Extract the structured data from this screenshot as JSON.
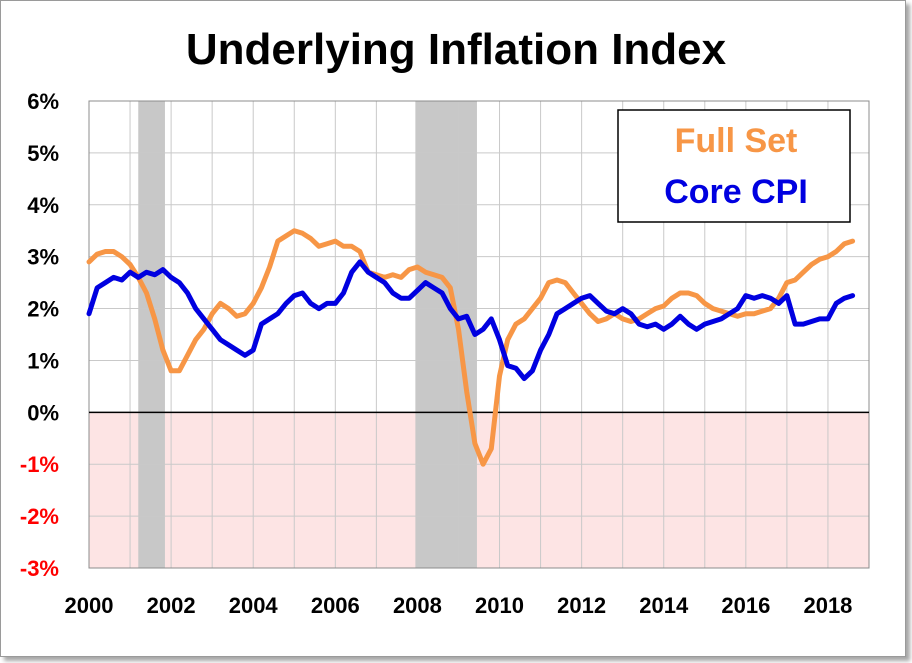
{
  "chart_data": {
    "type": "line",
    "title": "Underlying Inflation Index",
    "xlabel": "",
    "ylabel": "",
    "xlim": [
      2000,
      2019.0
    ],
    "ylim": [
      -3,
      6
    ],
    "y_ticks": [
      "-3%",
      "-2%",
      "-1%",
      "0%",
      "1%",
      "2%",
      "3%",
      "4%",
      "5%",
      "6%"
    ],
    "y_tick_values": [
      -3,
      -2,
      -1,
      0,
      1,
      2,
      3,
      4,
      5,
      6
    ],
    "x_ticks": [
      "2000",
      "2002",
      "2004",
      "2006",
      "2008",
      "2010",
      "2012",
      "2014",
      "2016",
      "2018"
    ],
    "x_tick_values": [
      2000,
      2002,
      2004,
      2006,
      2008,
      2010,
      2012,
      2014,
      2016,
      2018
    ],
    "recessions": [
      [
        2001.2,
        2001.85
      ],
      [
        2007.95,
        2009.45
      ]
    ],
    "legend": {
      "position": "top-right",
      "entries": [
        "Full Set",
        "Core CPI"
      ]
    },
    "colors": {
      "full_set": "#f79646",
      "core_cpi": "#0000e0",
      "recession": "#c8c8c8",
      "negative_zone": "#fde4e4",
      "negative_tick": "#ff0000"
    },
    "series": [
      {
        "name": "Full Set",
        "x": [
          2000.0,
          2000.2,
          2000.4,
          2000.6,
          2000.8,
          2001.0,
          2001.2,
          2001.4,
          2001.6,
          2001.8,
          2002.0,
          2002.2,
          2002.4,
          2002.6,
          2002.8,
          2003.0,
          2003.2,
          2003.4,
          2003.6,
          2003.8,
          2004.0,
          2004.2,
          2004.4,
          2004.6,
          2004.8,
          2005.0,
          2005.2,
          2005.4,
          2005.6,
          2005.8,
          2006.0,
          2006.2,
          2006.4,
          2006.6,
          2006.8,
          2007.0,
          2007.2,
          2007.4,
          2007.6,
          2007.8,
          2008.0,
          2008.2,
          2008.4,
          2008.6,
          2008.8,
          2009.0,
          2009.2,
          2009.4,
          2009.6,
          2009.8,
          2010.0,
          2010.2,
          2010.4,
          2010.6,
          2010.8,
          2011.0,
          2011.2,
          2011.4,
          2011.6,
          2011.8,
          2012.0,
          2012.2,
          2012.4,
          2012.6,
          2012.8,
          2013.0,
          2013.2,
          2013.4,
          2013.6,
          2013.8,
          2014.0,
          2014.2,
          2014.4,
          2014.6,
          2014.8,
          2015.0,
          2015.2,
          2015.4,
          2015.6,
          2015.8,
          2016.0,
          2016.2,
          2016.4,
          2016.6,
          2016.8,
          2017.0,
          2017.2,
          2017.4,
          2017.6,
          2017.8,
          2018.0,
          2018.2,
          2018.4,
          2018.6
        ],
        "values": [
          2.9,
          3.05,
          3.1,
          3.1,
          3.0,
          2.85,
          2.6,
          2.3,
          1.8,
          1.2,
          0.8,
          0.8,
          1.1,
          1.4,
          1.6,
          1.9,
          2.1,
          2.0,
          1.85,
          1.9,
          2.1,
          2.4,
          2.8,
          3.3,
          3.4,
          3.5,
          3.45,
          3.35,
          3.2,
          3.25,
          3.3,
          3.2,
          3.2,
          3.1,
          2.7,
          2.65,
          2.6,
          2.65,
          2.6,
          2.75,
          2.8,
          2.7,
          2.65,
          2.6,
          2.4,
          1.6,
          0.4,
          -0.6,
          -1.0,
          -0.7,
          0.7,
          1.4,
          1.7,
          1.8,
          2.0,
          2.2,
          2.5,
          2.55,
          2.5,
          2.3,
          2.1,
          1.9,
          1.75,
          1.8,
          1.9,
          1.8,
          1.75,
          1.8,
          1.9,
          2.0,
          2.05,
          2.2,
          2.3,
          2.3,
          2.25,
          2.1,
          2.0,
          1.95,
          1.9,
          1.85,
          1.9,
          1.9,
          1.95,
          2.0,
          2.2,
          2.5,
          2.55,
          2.7,
          2.85,
          2.95,
          3.0,
          3.1,
          3.25,
          3.3
        ]
      },
      {
        "name": "Core CPI",
        "x": [
          2000.0,
          2000.2,
          2000.4,
          2000.6,
          2000.8,
          2001.0,
          2001.2,
          2001.4,
          2001.6,
          2001.8,
          2002.0,
          2002.2,
          2002.4,
          2002.6,
          2002.8,
          2003.0,
          2003.2,
          2003.4,
          2003.6,
          2003.8,
          2004.0,
          2004.2,
          2004.4,
          2004.6,
          2004.8,
          2005.0,
          2005.2,
          2005.4,
          2005.6,
          2005.8,
          2006.0,
          2006.2,
          2006.4,
          2006.6,
          2006.8,
          2007.0,
          2007.2,
          2007.4,
          2007.6,
          2007.8,
          2008.0,
          2008.2,
          2008.4,
          2008.6,
          2008.8,
          2009.0,
          2009.2,
          2009.4,
          2009.6,
          2009.8,
          2010.0,
          2010.2,
          2010.4,
          2010.6,
          2010.8,
          2011.0,
          2011.2,
          2011.4,
          2011.6,
          2011.8,
          2012.0,
          2012.2,
          2012.4,
          2012.6,
          2012.8,
          2013.0,
          2013.2,
          2013.4,
          2013.6,
          2013.8,
          2014.0,
          2014.2,
          2014.4,
          2014.6,
          2014.8,
          2015.0,
          2015.2,
          2015.4,
          2015.6,
          2015.8,
          2016.0,
          2016.2,
          2016.4,
          2016.6,
          2016.8,
          2017.0,
          2017.2,
          2017.4,
          2017.6,
          2017.8,
          2018.0,
          2018.2,
          2018.4,
          2018.6
        ],
        "values": [
          1.9,
          2.4,
          2.5,
          2.6,
          2.55,
          2.7,
          2.6,
          2.7,
          2.65,
          2.75,
          2.6,
          2.5,
          2.3,
          2.0,
          1.8,
          1.6,
          1.4,
          1.3,
          1.2,
          1.1,
          1.2,
          1.7,
          1.8,
          1.9,
          2.1,
          2.25,
          2.3,
          2.1,
          2.0,
          2.1,
          2.1,
          2.3,
          2.7,
          2.9,
          2.7,
          2.6,
          2.5,
          2.3,
          2.2,
          2.2,
          2.35,
          2.5,
          2.4,
          2.3,
          2.0,
          1.8,
          1.85,
          1.5,
          1.6,
          1.8,
          1.4,
          0.9,
          0.85,
          0.65,
          0.8,
          1.2,
          1.5,
          1.9,
          2.0,
          2.1,
          2.2,
          2.25,
          2.1,
          1.95,
          1.9,
          2.0,
          1.9,
          1.7,
          1.65,
          1.7,
          1.6,
          1.7,
          1.85,
          1.7,
          1.6,
          1.7,
          1.75,
          1.8,
          1.9,
          2.0,
          2.25,
          2.2,
          2.25,
          2.2,
          2.1,
          2.25,
          1.7,
          1.7,
          1.75,
          1.8,
          1.8,
          2.1,
          2.2,
          2.25
        ]
      }
    ]
  }
}
